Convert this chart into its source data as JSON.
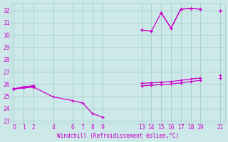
{
  "xlabel": "Windchill (Refroidissement éolien,°C)",
  "bg_color": "#cce8e8",
  "grid_color": "#aad0d0",
  "line_color": "#cc00cc",
  "xlim": [
    -0.3,
    21.5
  ],
  "ylim": [
    22.8,
    32.6
  ],
  "xticks": [
    0,
    1,
    2,
    4,
    6,
    7,
    8,
    9,
    13,
    14,
    15,
    16,
    17,
    18,
    19,
    21
  ],
  "yticks": [
    23,
    24,
    25,
    26,
    27,
    28,
    29,
    30,
    31,
    32
  ],
  "lines": [
    {
      "x": [
        0,
        1,
        2,
        null,
        13,
        14,
        null,
        15,
        16,
        17,
        18,
        19,
        null,
        21
      ],
      "y": [
        25.6,
        25.75,
        25.85,
        null,
        30.4,
        30.3,
        null,
        31.8,
        30.55,
        32.1,
        32.15,
        32.1,
        null,
        32.0
      ]
    },
    {
      "x": [
        0,
        1,
        2,
        null,
        13,
        14,
        15,
        16,
        17,
        18,
        19,
        null,
        21
      ],
      "y": [
        25.6,
        25.75,
        25.85,
        null,
        30.4,
        30.3,
        31.8,
        30.55,
        32.1,
        32.15,
        32.1,
        null,
        32.0
      ]
    },
    {
      "x": [
        0,
        2,
        4,
        6,
        7,
        8,
        9
      ],
      "y": [
        25.6,
        25.75,
        24.95,
        24.65,
        24.45,
        23.6,
        23.3
      ]
    },
    {
      "x": [
        0,
        1,
        2,
        null,
        13,
        14,
        15,
        16,
        17,
        18,
        19,
        null,
        21
      ],
      "y": [
        25.6,
        25.75,
        25.85,
        null,
        26.05,
        26.1,
        26.15,
        26.2,
        26.3,
        26.4,
        26.5,
        null,
        26.7
      ]
    },
    {
      "x": [
        0,
        1,
        2,
        null,
        13,
        14,
        15,
        16,
        17,
        18,
        19,
        null,
        21
      ],
      "y": [
        25.6,
        25.75,
        25.85,
        null,
        25.85,
        25.9,
        25.95,
        26.0,
        26.1,
        26.2,
        26.3,
        null,
        26.5
      ]
    }
  ]
}
